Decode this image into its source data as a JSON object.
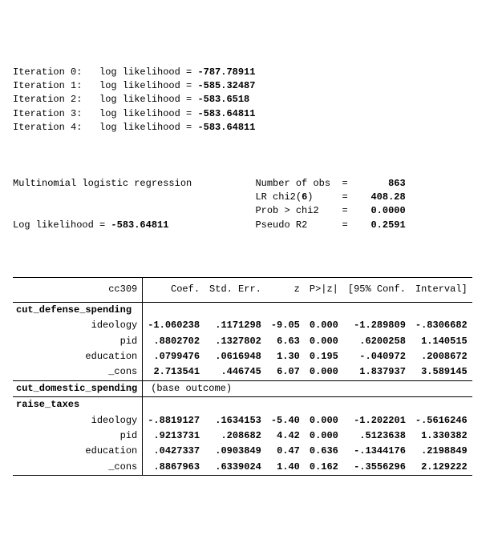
{
  "iterations": [
    {
      "n": "0",
      "ll": "-787.78911"
    },
    {
      "n": "1",
      "ll": "-585.32487"
    },
    {
      "n": "2",
      "ll": "-583.6518"
    },
    {
      "n": "3",
      "ll": "-583.64811"
    },
    {
      "n": "4",
      "ll": "-583.64811"
    }
  ],
  "iter_prefix": "Iteration ",
  "iter_mid": ":   log likelihood = ",
  "header": {
    "title": "Multinomial logistic regression",
    "nobs_lbl": "Number of obs",
    "nobs": "863",
    "lrchi_lbl": "LR chi2(",
    "lrchi_df": "6",
    "lrchi_close": ")",
    "lrchi": "408.28",
    "probchi_lbl": "Prob > chi2",
    "probchi": "0.0000",
    "pseudor2_lbl": "Pseudo R2",
    "pseudor2": "0.2591",
    "logl_lbl": "Log likelihood = ",
    "logl": "-583.64811",
    "eq": "="
  },
  "table": {
    "depvar": "cc309",
    "cols": [
      "Coef.",
      "Std. Err.",
      "z",
      "P>|z|",
      "[95% Conf.",
      "Interval]"
    ],
    "group1": "cut_defense_spending",
    "group1_rows": [
      {
        "v": "ideology",
        "c": "-1.060238",
        "se": ".1171298",
        "z": "-9.05",
        "p": "0.000",
        "lo": "-1.289809",
        "hi": "-.8306682"
      },
      {
        "v": "pid",
        "c": ".8802702",
        "se": ".1327802",
        "z": "6.63",
        "p": "0.000",
        "lo": ".6200258",
        "hi": "1.140515"
      },
      {
        "v": "education",
        "c": ".0799476",
        "se": ".0616948",
        "z": "1.30",
        "p": "0.195",
        "lo": "-.040972",
        "hi": ".2008672"
      },
      {
        "v": "_cons",
        "c": "2.713541",
        "se": ".446745",
        "z": "6.07",
        "p": "0.000",
        "lo": "1.837937",
        "hi": "3.589145"
      }
    ],
    "group2": "cut_domestic_spending",
    "group2_note": "(base outcome)",
    "group3": "raise_taxes",
    "group3_rows": [
      {
        "v": "ideology",
        "c": "-.8819127",
        "se": ".1634153",
        "z": "-5.40",
        "p": "0.000",
        "lo": "-1.202201",
        "hi": "-.5616246"
      },
      {
        "v": "pid",
        "c": ".9213731",
        "se": ".208682",
        "z": "4.42",
        "p": "0.000",
        "lo": ".5123638",
        "hi": "1.330382"
      },
      {
        "v": "education",
        "c": ".0427337",
        "se": ".0903849",
        "z": "0.47",
        "p": "0.636",
        "lo": "-.1344176",
        "hi": ".2198849"
      },
      {
        "v": "_cons",
        "c": ".8867963",
        "se": ".6339024",
        "z": "1.40",
        "p": "0.162",
        "lo": "-.3556296",
        "hi": "2.129222"
      }
    ]
  }
}
